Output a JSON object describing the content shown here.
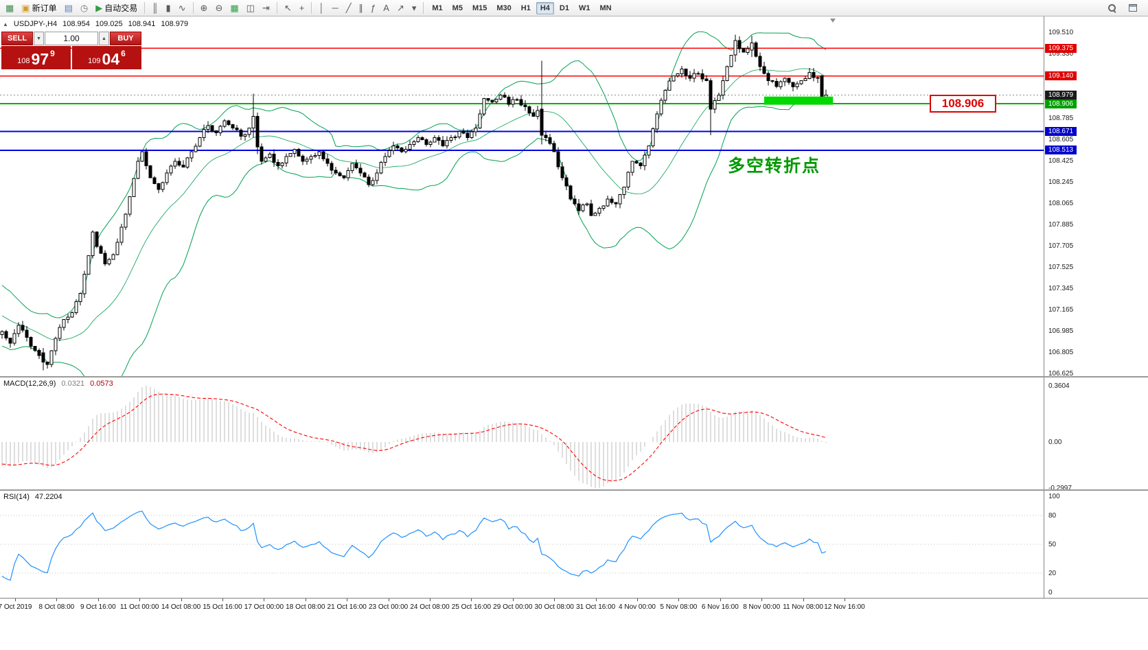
{
  "toolbar": {
    "groups": [
      [
        {
          "name": "new-chart-button",
          "icon": "chart-add-icon",
          "glyph": "▦",
          "color": "#3c8a4e"
        },
        {
          "name": "new-order-button",
          "icon": "new-order-icon",
          "glyph": "▣",
          "color": "#d49b2a",
          "label": "新订单"
        },
        {
          "name": "profiles-button",
          "icon": "profiles-icon",
          "glyph": "▤",
          "color": "#5b7fb5"
        },
        {
          "name": "market-watch-button",
          "icon": "clock-icon",
          "glyph": "◷",
          "color": "#7a7a7a"
        },
        {
          "name": "auto-trading-button",
          "icon": "auto-trading-icon",
          "glyph": "▶",
          "color": "#2f9e44",
          "label": "自动交易"
        }
      ],
      [
        {
          "name": "bar-chart-button",
          "icon": "bar-chart-icon",
          "glyph": "║"
        },
        {
          "name": "candlestick-button",
          "icon": "candlestick-icon",
          "glyph": "▮"
        },
        {
          "name": "line-chart-button",
          "icon": "line-chart-icon",
          "glyph": "∿"
        }
      ],
      [
        {
          "name": "zoom-in-button",
          "icon": "zoom-in-icon",
          "glyph": "⊕"
        },
        {
          "name": "zoom-out-button",
          "icon": "zoom-out-icon",
          "glyph": "⊖"
        },
        {
          "name": "indicators-button",
          "icon": "indicators-icon",
          "glyph": "▦",
          "color": "#2f9e44"
        },
        {
          "name": "tile-windows-button",
          "icon": "tile-windows-icon",
          "glyph": "◫"
        },
        {
          "name": "chart-shift-button",
          "icon": "chart-shift-icon",
          "glyph": "⇥"
        }
      ],
      [
        {
          "name": "cursor-button",
          "icon": "cursor-icon",
          "glyph": "↖"
        },
        {
          "name": "crosshair-button",
          "icon": "crosshair-icon",
          "glyph": "+"
        }
      ],
      [
        {
          "name": "vertical-line-button",
          "icon": "vertical-line-icon",
          "glyph": "│"
        },
        {
          "name": "horizontal-line-button",
          "icon": "horizontal-line-icon",
          "glyph": "─"
        },
        {
          "name": "trendline-button",
          "icon": "trendline-icon",
          "glyph": "╱"
        },
        {
          "name": "channel-button",
          "icon": "channel-icon",
          "glyph": "∥"
        },
        {
          "name": "fibonacci-button",
          "icon": "fibonacci-icon",
          "glyph": "ƒ"
        },
        {
          "name": "text-button",
          "icon": "text-icon",
          "glyph": "A"
        },
        {
          "name": "arrows-button",
          "icon": "arrows-icon",
          "glyph": "↗"
        },
        {
          "name": "shapes-button",
          "icon": "chevron-down-icon",
          "glyph": "▾"
        }
      ]
    ],
    "timeframes": [
      "M1",
      "M5",
      "M15",
      "M30",
      "H1",
      "H4",
      "D1",
      "W1",
      "MN"
    ],
    "active_timeframe": "H4",
    "right_buttons": [
      {
        "name": "search-button",
        "icon": "search-icon",
        "shape": "mag"
      },
      {
        "name": "new-window-button",
        "icon": "new-window-icon",
        "shape": "winico"
      }
    ]
  },
  "chart": {
    "symbol_line": {
      "collapse_glyph": "▲",
      "symbol": "USDJPY-,H4",
      "open": "108.954",
      "high": "109.025",
      "low": "108.941",
      "close": "108.979"
    },
    "trade_panel": {
      "sell_label": "SELL",
      "buy_label": "BUY",
      "lot": "1.00",
      "spin_down_glyph": "▼",
      "spin_up_glyph": "▲",
      "sell_price": {
        "prefix": "108",
        "big": "97",
        "sup": "9"
      },
      "buy_price": {
        "prefix": "109",
        "big": "04",
        "sup": "6"
      }
    },
    "callout_label": "108.906",
    "annotation_text": "多空转折点"
  },
  "chart_data": {
    "type": "candlestick",
    "symbol": "USDJPY-",
    "timeframe": "H4",
    "current_ohlc": {
      "open": 108.954,
      "high": 109.025,
      "low": 108.941,
      "close": 108.979
    },
    "price_axis": {
      "max": 109.51,
      "min": 106.625,
      "step": 0.18,
      "labels": [
        "109.510",
        "109.330",
        "108.785",
        "108.605",
        "108.425",
        "108.245",
        "108.065",
        "107.885",
        "107.705",
        "107.525",
        "107.345",
        "107.165",
        "106.985",
        "106.805",
        "106.625"
      ]
    },
    "badges": [
      {
        "label": "109.375",
        "color": "#e00000"
      },
      {
        "label": "109.140",
        "color": "#e00000"
      },
      {
        "label": "108.979",
        "color": "#1a1a1a"
      },
      {
        "label": "108.906",
        "color": "#00a000"
      },
      {
        "label": "108.671",
        "color": "#0000cc"
      },
      {
        "label": "108.513",
        "color": "#0000cc"
      }
    ],
    "levels": [
      {
        "price": 109.375,
        "color": "#ff0000",
        "width": 1.4
      },
      {
        "price": 109.14,
        "color": "#ff0000",
        "width": 1.4
      },
      {
        "price": 108.979,
        "color": "#8a8a8a",
        "width": 1,
        "dash": "2 3"
      },
      {
        "price": 108.906,
        "color": "#00b000",
        "width": 2
      },
      {
        "price": 108.671,
        "color": "#0000e0",
        "width": 2
      },
      {
        "price": 108.513,
        "color": "#0000e0",
        "width": 2
      }
    ],
    "bollinger": {
      "period": 20,
      "deviation": 2,
      "color": "#00a050"
    },
    "candle_up_fill": "#ffffff",
    "candle_down_fill": "#000000",
    "candle_stroke": "#000000",
    "highlight_rect": {
      "color": "#00d800",
      "from_index": 185,
      "to_index": 201.7,
      "top_price": 108.966,
      "bottom_price": 108.897
    },
    "price_keyframes": [
      [
        -25,
        107.42
      ],
      [
        -20,
        107.36
      ],
      [
        -15,
        107.25
      ],
      [
        -10,
        107.1
      ],
      [
        -6,
        107.02
      ],
      [
        -3,
        106.95
      ],
      [
        0,
        106.98
      ],
      [
        2,
        106.88
      ],
      [
        4,
        107.03
      ],
      [
        6,
        106.93
      ],
      [
        8,
        106.82
      ],
      [
        10,
        106.72
      ],
      [
        11,
        106.7
      ],
      [
        13,
        106.92
      ],
      [
        15,
        107.08
      ],
      [
        17,
        107.14
      ],
      [
        19,
        107.3
      ],
      [
        21,
        107.62
      ],
      [
        22,
        107.82
      ],
      [
        23,
        107.7
      ],
      [
        25,
        107.55
      ],
      [
        27,
        107.63
      ],
      [
        29,
        107.86
      ],
      [
        31,
        108.12
      ],
      [
        33,
        108.42
      ],
      [
        34,
        108.5
      ],
      [
        36,
        108.28
      ],
      [
        38,
        108.18
      ],
      [
        40,
        108.32
      ],
      [
        42,
        108.42
      ],
      [
        44,
        108.37
      ],
      [
        46,
        108.5
      ],
      [
        48,
        108.62
      ],
      [
        50,
        108.72
      ],
      [
        52,
        108.66
      ],
      [
        54,
        108.76
      ],
      [
        56,
        108.7
      ],
      [
        58,
        108.63
      ],
      [
        60,
        108.7
      ],
      [
        61,
        108.8
      ],
      [
        63,
        108.42
      ],
      [
        65,
        108.48
      ],
      [
        67,
        108.38
      ],
      [
        69,
        108.46
      ],
      [
        71,
        108.52
      ],
      [
        73,
        108.42
      ],
      [
        75,
        108.46
      ],
      [
        77,
        108.5
      ],
      [
        79,
        108.4
      ],
      [
        81,
        108.32
      ],
      [
        83,
        108.28
      ],
      [
        85,
        108.4
      ],
      [
        87,
        108.32
      ],
      [
        89,
        108.22
      ],
      [
        91,
        108.32
      ],
      [
        93,
        108.46
      ],
      [
        95,
        108.55
      ],
      [
        97,
        108.5
      ],
      [
        99,
        108.56
      ],
      [
        101,
        108.62
      ],
      [
        103,
        108.56
      ],
      [
        105,
        108.62
      ],
      [
        107,
        108.55
      ],
      [
        109,
        108.62
      ],
      [
        111,
        108.67
      ],
      [
        113,
        108.62
      ],
      [
        115,
        108.7
      ],
      [
        116,
        108.82
      ],
      [
        117,
        108.95
      ],
      [
        119,
        108.92
      ],
      [
        121,
        108.98
      ],
      [
        123,
        108.9
      ],
      [
        125,
        108.94
      ],
      [
        127,
        108.88
      ],
      [
        129,
        108.8
      ],
      [
        131,
        108.88
      ],
      [
        132,
        108.62
      ],
      [
        134,
        108.5
      ],
      [
        136,
        108.28
      ],
      [
        138,
        108.1
      ],
      [
        140,
        108.0
      ],
      [
        142,
        108.06
      ],
      [
        143,
        107.96
      ],
      [
        145,
        108.02
      ],
      [
        147,
        108.1
      ],
      [
        149,
        108.06
      ],
      [
        151,
        108.2
      ],
      [
        153,
        108.42
      ],
      [
        155,
        108.38
      ],
      [
        157,
        108.55
      ],
      [
        159,
        108.82
      ],
      [
        161,
        109.02
      ],
      [
        163,
        109.14
      ],
      [
        165,
        109.2
      ],
      [
        167,
        109.12
      ],
      [
        169,
        109.16
      ],
      [
        171,
        109.1
      ],
      [
        172,
        108.86
      ],
      [
        174,
        108.98
      ],
      [
        176,
        109.22
      ],
      [
        178,
        109.42
      ],
      [
        180,
        109.34
      ],
      [
        182,
        109.42
      ],
      [
        184,
        109.22
      ],
      [
        186,
        109.1
      ],
      [
        188,
        109.05
      ],
      [
        190,
        109.12
      ],
      [
        192,
        109.05
      ],
      [
        194,
        109.1
      ],
      [
        196,
        109.17
      ],
      [
        198,
        109.12
      ],
      [
        199,
        108.96
      ],
      [
        200,
        108.979
      ]
    ],
    "candle_overrides": [
      {
        "i": 10,
        "o": 106.8,
        "h": 106.84,
        "l": 106.65,
        "c": 106.72
      },
      {
        "i": 61,
        "o": 108.7,
        "h": 108.99,
        "l": 108.62,
        "c": 108.8
      },
      {
        "i": 62,
        "o": 108.8,
        "h": 108.83,
        "l": 108.48,
        "c": 108.54
      },
      {
        "i": 131,
        "o": 108.86,
        "h": 109.27,
        "l": 108.56,
        "c": 108.64
      },
      {
        "i": 172,
        "o": 109.1,
        "h": 109.12,
        "l": 108.64,
        "c": 108.86
      },
      {
        "i": 178,
        "o": 109.32,
        "h": 109.49,
        "l": 109.26,
        "c": 109.44
      },
      {
        "i": 182,
        "o": 109.36,
        "h": 109.48,
        "l": 109.3,
        "c": 109.42
      },
      {
        "i": 199,
        "o": 109.14,
        "h": 109.15,
        "l": 108.93,
        "c": 108.96
      },
      {
        "i": 200,
        "o": 108.954,
        "h": 109.025,
        "l": 108.941,
        "c": 108.979
      }
    ],
    "macd": {
      "title": "MACD(12,26,9)",
      "value_main": "0.0321",
      "value_signal": "0.0573",
      "axis_labels": [
        "0.3604",
        "0.00",
        "-0.2997"
      ],
      "histogram_color": "#bdbdbd",
      "signal_color": "#ff0000"
    },
    "rsi": {
      "title": "RSI(14)",
      "value": "47.2204",
      "axis_labels": [
        100,
        80,
        50,
        20,
        0
      ],
      "levels": [
        80,
        50,
        20
      ],
      "color": "#1e90ff"
    },
    "time_labels": [
      "7 Oct 2019",
      "8 Oct 08:00",
      "9 Oct 16:00",
      "11 Oct 00:00",
      "14 Oct 08:00",
      "15 Oct 16:00",
      "17 Oct 00:00",
      "18 Oct 08:00",
      "21 Oct 16:00",
      "23 Oct 00:00",
      "24 Oct 08:00",
      "25 Oct 16:00",
      "29 Oct 00:00",
      "30 Oct 08:00",
      "31 Oct 16:00",
      "4 Nov 00:00",
      "5 Nov 08:00",
      "6 Nov 16:00",
      "8 Nov 00:00",
      "11 Nov 08:00",
      "12 Nov 16:00"
    ]
  }
}
